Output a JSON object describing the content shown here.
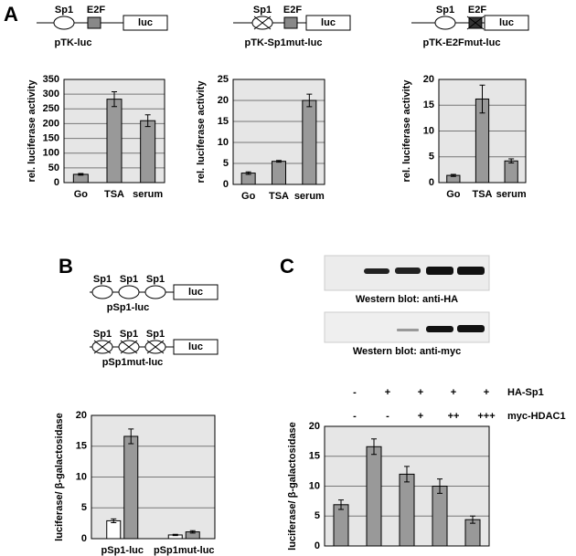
{
  "panel_labels": [
    "A",
    "B",
    "C"
  ],
  "constructs": [
    {
      "name": "pTK-luc",
      "sites": [
        "Sp1",
        "E2F"
      ],
      "mutated": [
        false,
        false
      ],
      "reporter": "luc"
    },
    {
      "name": "pTK-Sp1mut-luc",
      "sites": [
        "Sp1",
        "E2F"
      ],
      "mutated": [
        true,
        false
      ],
      "reporter": "luc"
    },
    {
      "name": "pTK-E2Fmut-luc",
      "sites": [
        "Sp1",
        "E2F"
      ],
      "mutated": [
        false,
        true
      ],
      "reporter": "luc"
    },
    {
      "name": "pSp1-luc",
      "sites": [
        "Sp1",
        "Sp1",
        "Sp1"
      ],
      "mutated": [
        false,
        false,
        false
      ],
      "reporter": "luc"
    },
    {
      "name": "pSp1mut-luc",
      "sites": [
        "Sp1",
        "Sp1",
        "Sp1"
      ],
      "mutated": [
        true,
        true,
        true
      ],
      "reporter": "luc"
    }
  ],
  "blots": [
    "Western blot: anti-HA",
    "Western blot: anti-myc"
  ],
  "chart_data": [
    {
      "type": "bar",
      "y_label": "rel. luciferase activity",
      "categories": [
        "Go",
        "TSA",
        "serum"
      ],
      "values": [
        28,
        283,
        210
      ],
      "errors": [
        3,
        25,
        20
      ],
      "color": "#999999",
      "ylim": [
        0,
        350
      ],
      "yticks": [
        0,
        50,
        100,
        150,
        200,
        250,
        300,
        350
      ],
      "grid": true
    },
    {
      "type": "bar",
      "y_label": "rel. luciferase activity",
      "categories": [
        "Go",
        "TSA",
        "serum"
      ],
      "values": [
        2.7,
        5.5,
        20
      ],
      "errors": [
        0.3,
        0.2,
        1.5
      ],
      "color": "#999999",
      "ylim": [
        0,
        25
      ],
      "yticks": [
        0,
        5,
        10,
        15,
        20,
        25
      ],
      "grid": true
    },
    {
      "type": "bar",
      "y_label": "rel. luciferase activity",
      "categories": [
        "Go",
        "TSA",
        "serum"
      ],
      "values": [
        1.4,
        16.2,
        4.2
      ],
      "errors": [
        0.2,
        2.7,
        0.4
      ],
      "color": "#999999",
      "ylim": [
        0,
        20
      ],
      "yticks": [
        0,
        5,
        10,
        15,
        20
      ],
      "grid": true
    },
    {
      "type": "bar",
      "y_label": "luciferase/ β-galactosidase",
      "categories": [
        "pSp1-luc",
        "pSp1mut-luc"
      ],
      "series": [
        {
          "color": "#ffffff",
          "values": [
            2.9,
            0.6
          ],
          "errors": [
            0.3,
            0.1
          ]
        },
        {
          "color": "#999999",
          "values": [
            16.6,
            1.1
          ],
          "errors": [
            1.2,
            0.2
          ]
        }
      ],
      "ylim": [
        0,
        20
      ],
      "yticks": [
        0,
        5,
        10,
        15,
        20
      ],
      "grid": true
    },
    {
      "type": "bar",
      "y_label": "luciferase/ β-galactosidase",
      "values": [
        6.9,
        16.6,
        12,
        10,
        4.4
      ],
      "errors": [
        0.8,
        1.3,
        1.3,
        1.2,
        0.6
      ],
      "color": "#999999",
      "ylim": [
        0,
        20
      ],
      "yticks": [
        0,
        5,
        10,
        15,
        20
      ],
      "grid": true,
      "conditions": [
        {
          "name": "HA-Sp1",
          "marks": [
            "-",
            "+",
            "+",
            "+",
            "+"
          ]
        },
        {
          "name": "myc-HDAC1",
          "marks": [
            "-",
            "-",
            "+",
            "++",
            "+++"
          ]
        }
      ]
    }
  ]
}
